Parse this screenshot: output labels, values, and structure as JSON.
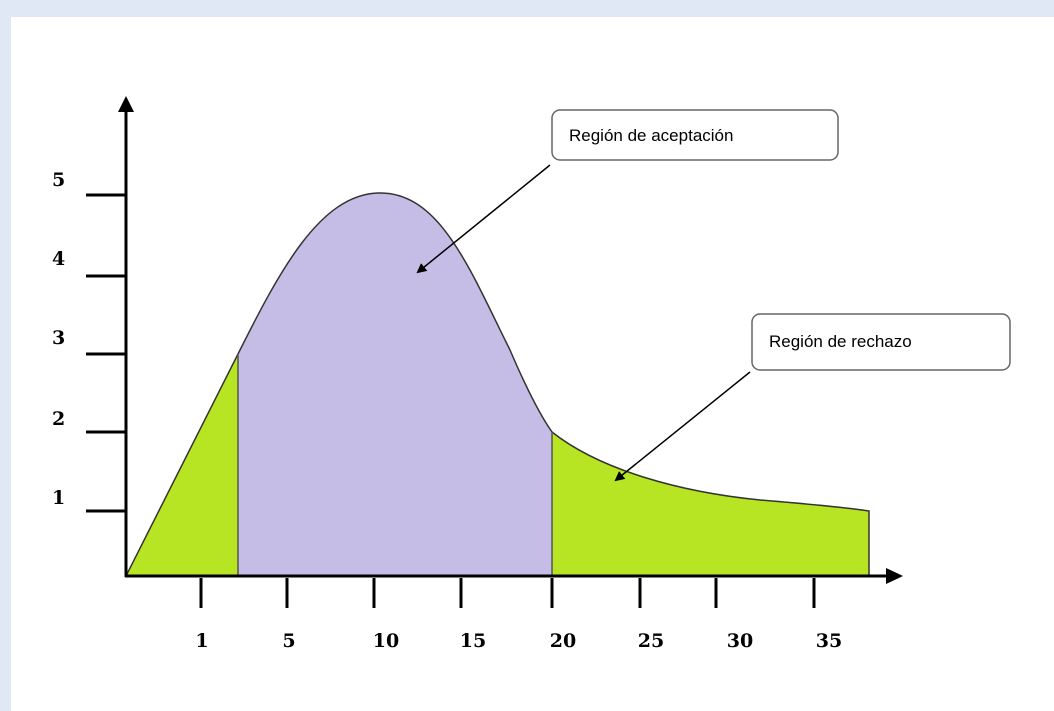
{
  "y_ticks": [
    "5",
    "4",
    "3",
    "2",
    "1"
  ],
  "x_ticks": [
    "1",
    "5",
    "10",
    "15",
    "20",
    "25",
    "30",
    "35"
  ],
  "callouts": {
    "acceptance": "Región de aceptación",
    "rejection": "Región de rechazo"
  },
  "colors": {
    "acceptance_fill": "#c6bde6",
    "rejection_fill": "#b7e523",
    "frame_background": "#dfe8f4"
  }
}
